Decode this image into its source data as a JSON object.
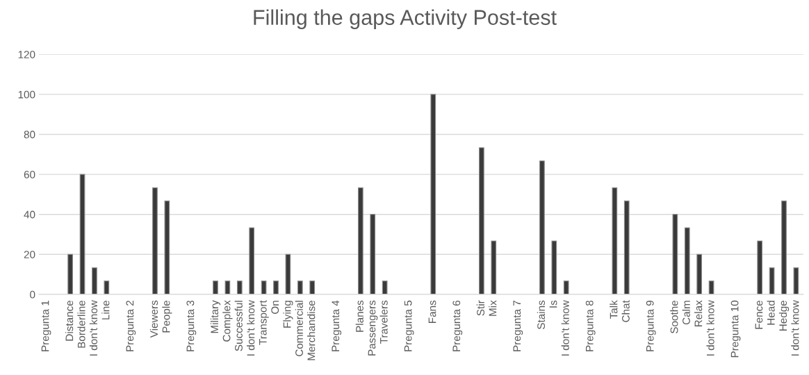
{
  "chart_data": {
    "type": "bar",
    "title": "Filling the gaps Activity Post-test",
    "categories": [
      "Pregunta 1",
      null,
      "Distance",
      "Borderline",
      "I don't know",
      "Line",
      null,
      "Pregunta 2",
      null,
      "Viewers",
      "People",
      null,
      "Pregunta 3",
      null,
      "Military",
      "Complex",
      "Successful",
      "I don't know",
      "Transport",
      "On",
      "Flying",
      "Commercial",
      "Merchandise",
      null,
      "Pregunta 4",
      null,
      "Planes",
      "Passengers",
      "Travelers",
      null,
      "Pregunta 5",
      null,
      "Fans",
      null,
      "Pregunta 6",
      null,
      "Stir",
      "Mix",
      null,
      "Pregunta 7",
      null,
      "Stains",
      "Is",
      "I don't know",
      null,
      "Pregunta 8",
      null,
      "Talk",
      "Chat",
      null,
      "Pregunta 9",
      null,
      "Soothe",
      "Calm",
      "Relax",
      "I don't know",
      null,
      "Pregunta 10",
      null,
      "Fence",
      "Head",
      "Hedge",
      "I don't know"
    ],
    "values": [
      null,
      null,
      20,
      60,
      13.3,
      6.7,
      null,
      null,
      null,
      53.3,
      46.7,
      null,
      null,
      null,
      6.7,
      6.7,
      6.7,
      33.3,
      6.7,
      6.7,
      20,
      6.7,
      6.7,
      null,
      null,
      null,
      53.3,
      40,
      6.7,
      null,
      null,
      null,
      100,
      null,
      null,
      null,
      73.3,
      26.7,
      null,
      null,
      null,
      66.7,
      26.7,
      6.7,
      null,
      null,
      null,
      53.3,
      46.7,
      null,
      null,
      null,
      40,
      33.3,
      20,
      6.7,
      null,
      null,
      null,
      26.7,
      13.3,
      46.7,
      13.3
    ],
    "color": "#3a3a3a",
    "ylim": [
      0,
      120
    ],
    "yticks": [
      0,
      20,
      40,
      60,
      80,
      100,
      120
    ],
    "grid": "y",
    "legend": false
  }
}
